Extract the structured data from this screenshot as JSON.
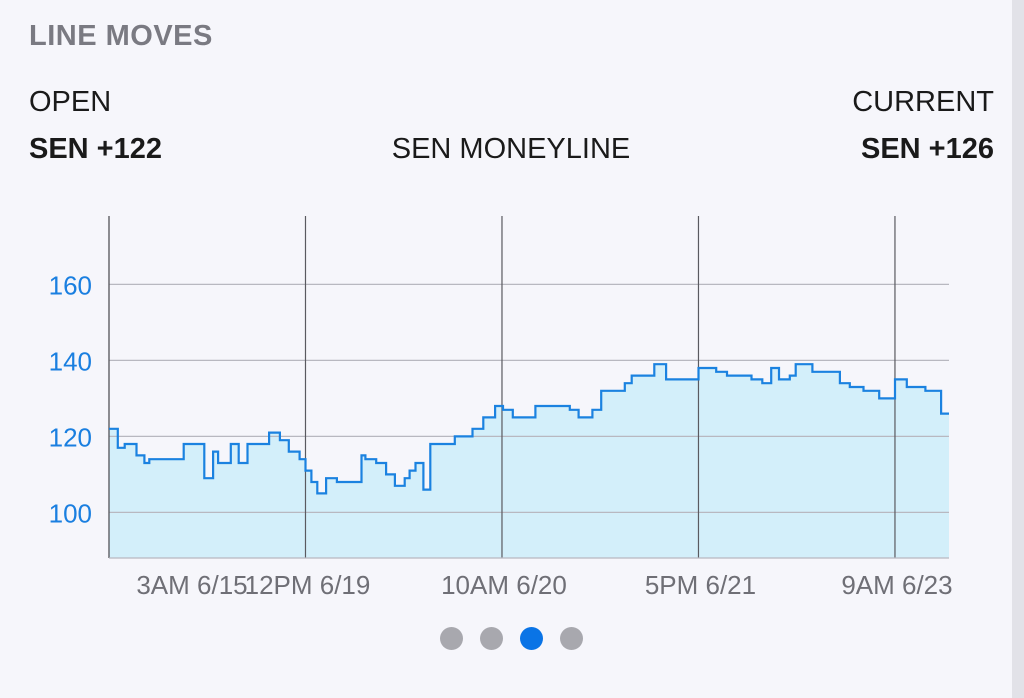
{
  "header": {
    "title": "LINE MOVES",
    "open_label": "OPEN",
    "current_label": "CURRENT",
    "open_value": "SEN +122",
    "current_value": "SEN +126",
    "market_label": "SEN MONEYLINE"
  },
  "pager": {
    "total": 4,
    "active_index": 2
  },
  "colors": {
    "line": "#1b82e0",
    "fill": "#d3effa",
    "grid": "#b8b8c0",
    "vgrid": "#5a5a60",
    "ytick": "#1a7fe0",
    "xtick": "#6f6f76",
    "active_dot": "#0a74e6",
    "inactive_dot": "#a8a8ae"
  },
  "chart_data": {
    "type": "area",
    "step": true,
    "title": "",
    "xlabel": "",
    "ylabel": "",
    "ylim": [
      88,
      178
    ],
    "yticks": [
      100,
      120,
      140,
      160
    ],
    "xtick_labels": [
      "3AM 6/15",
      "12PM 6/19",
      "10AM 6/20",
      "5PM 6/21",
      "9AM 6/23"
    ],
    "xtick_positions": [
      0,
      20,
      40,
      60,
      80
    ],
    "xlim": [
      0,
      85.5
    ],
    "grid": true,
    "series": [
      {
        "x": [
          0,
          0.9,
          1.6,
          2.8,
          3.6,
          4.1,
          7.6,
          9.7,
          10.6,
          11.1,
          12.4,
          13.2,
          14.1,
          16.3,
          17.4,
          18.3,
          19.4,
          20.0,
          20.6,
          21.2,
          22.1,
          23.2,
          24.1,
          25.7,
          26.1,
          27.2,
          28.2,
          29.1,
          30.1,
          30.6,
          31.2,
          32.0,
          32.7,
          34.0,
          35.2,
          37.0,
          38.1,
          39.3,
          40.1,
          41.1,
          41.7,
          43.4,
          44.0,
          46.9,
          47.8,
          49.2,
          50.1,
          52.5,
          53.2,
          55.5,
          56.7,
          57.6,
          58.7,
          60.0,
          61.8,
          62.9,
          63.7,
          65.4,
          66.5,
          67.4,
          68.2,
          69.3,
          69.9,
          71.6,
          72.4,
          74.4,
          75.4,
          76.8,
          78.4,
          80.0,
          81.2,
          83.1,
          84.7,
          85.5
        ],
        "values": [
          122,
          117,
          118,
          115,
          113,
          114,
          118,
          109,
          116,
          113,
          118,
          113,
          118,
          121,
          119,
          116,
          114,
          111,
          108,
          105,
          109,
          108,
          108,
          115,
          114,
          113,
          110,
          107,
          109,
          111,
          113,
          106,
          118,
          118,
          120,
          122,
          125,
          128,
          127,
          125,
          125,
          128,
          128,
          127,
          125,
          127,
          132,
          134,
          136,
          139,
          135,
          135,
          135,
          138,
          137,
          136,
          136,
          135,
          134,
          138,
          135,
          136,
          139,
          137,
          137,
          134,
          133,
          132,
          130,
          135,
          133,
          132,
          126,
          126
        ]
      }
    ]
  }
}
